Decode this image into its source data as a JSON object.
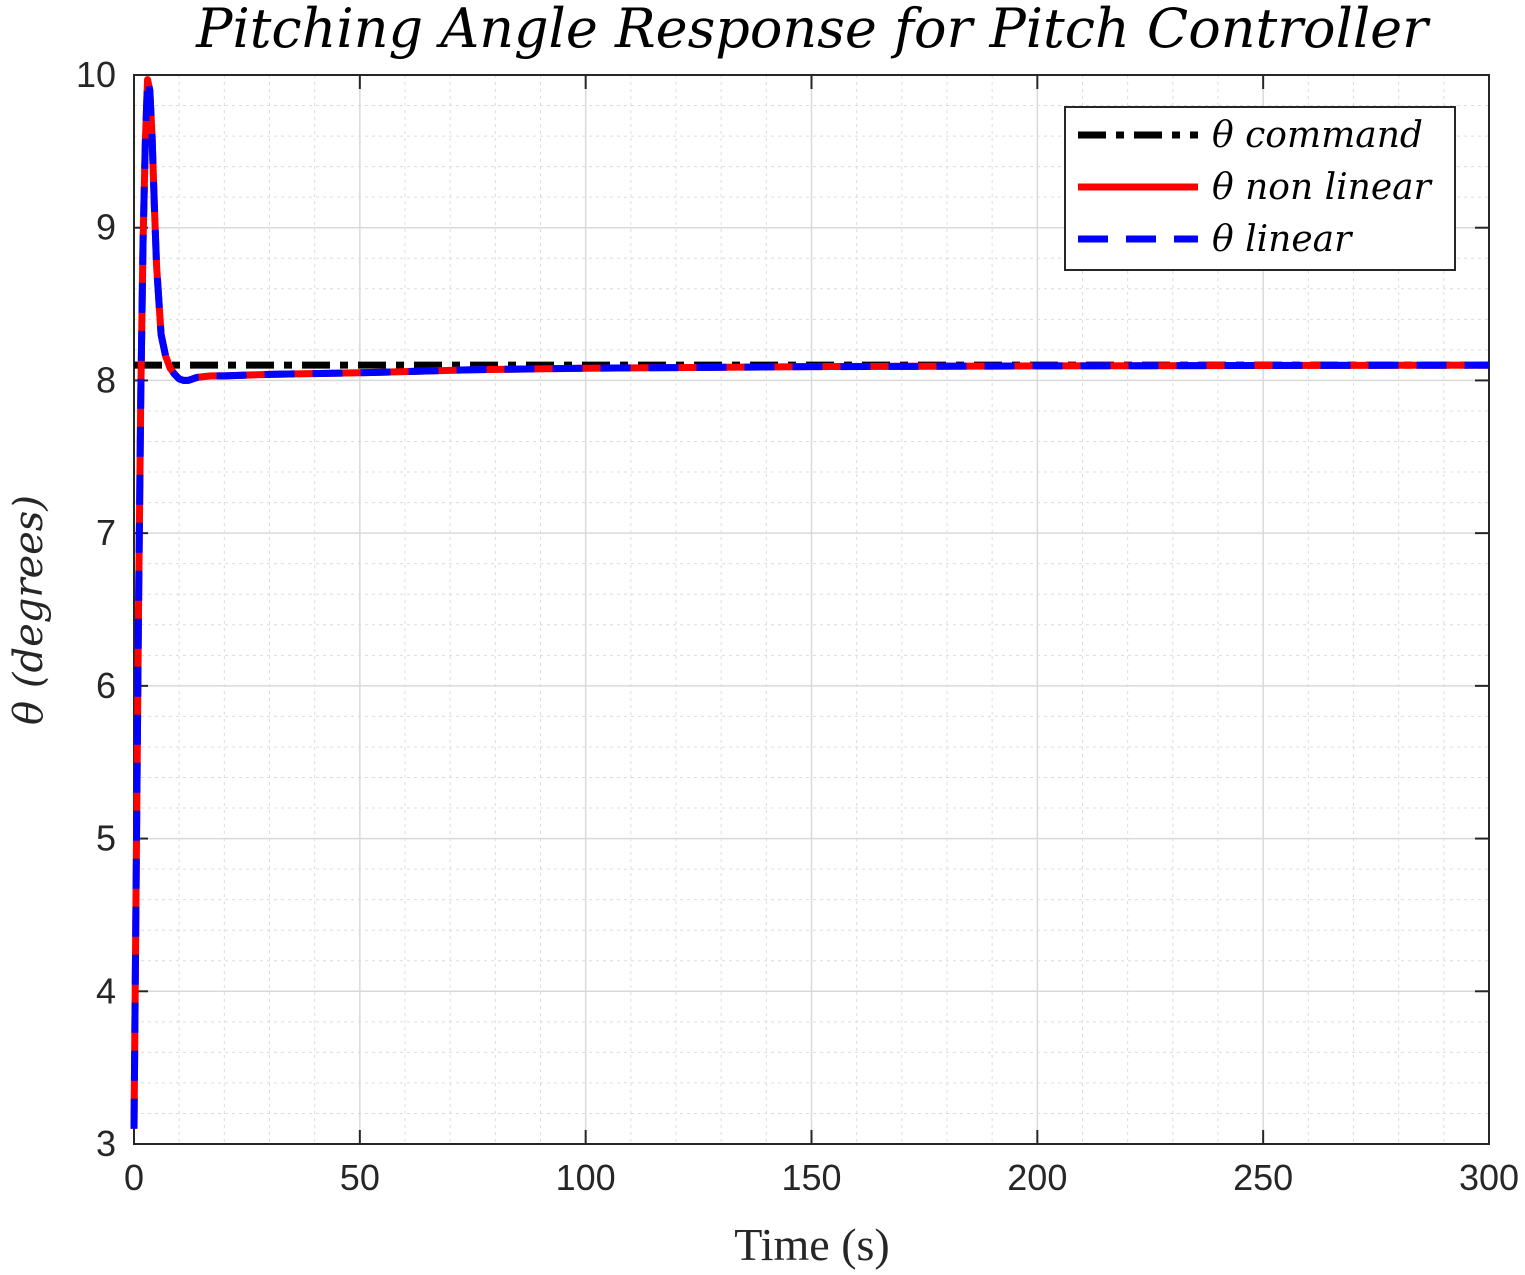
{
  "chart_data": {
    "type": "line",
    "title": "Pitching Angle Response for Pitch Controller",
    "xlabel": "Time (s)",
    "ylabel": "θ (degrees)",
    "xlim": [
      0,
      300
    ],
    "ylim": [
      3,
      10
    ],
    "xticks": [
      "0",
      "50",
      "100",
      "150",
      "200",
      "250",
      "300"
    ],
    "yticks": [
      "3",
      "4",
      "5",
      "6",
      "7",
      "8",
      "9",
      "10"
    ],
    "grid": true,
    "minor_grid": true,
    "legend_position": "top-right",
    "series": [
      {
        "name": "θ command",
        "color": "#000000",
        "style": "dash-dot",
        "x": [
          0,
          300
        ],
        "y": [
          8.1,
          8.1
        ]
      },
      {
        "name": "θ non linear",
        "color": "#ff0000",
        "style": "solid",
        "x": [
          0,
          0.5,
          1,
          1.5,
          2,
          2.5,
          3,
          3.5,
          4,
          4.5,
          5,
          6,
          7,
          8,
          9,
          10,
          11,
          12,
          14,
          17,
          20,
          30,
          50,
          75,
          100,
          150,
          200,
          250,
          300
        ],
        "y": [
          3.1,
          4.8,
          6.5,
          7.9,
          8.9,
          9.55,
          9.97,
          9.9,
          9.6,
          9.15,
          8.75,
          8.3,
          8.16,
          8.08,
          8.04,
          8.01,
          8.0,
          8.0,
          8.02,
          8.03,
          8.03,
          8.04,
          8.05,
          8.07,
          8.08,
          8.09,
          8.095,
          8.098,
          8.1
        ]
      },
      {
        "name": "θ linear",
        "color": "#0000ff",
        "style": "dashed",
        "x": [
          0,
          0.5,
          1,
          1.5,
          2,
          2.5,
          3,
          3.5,
          4,
          4.5,
          5,
          6,
          7,
          8,
          9,
          10,
          11,
          12,
          14,
          17,
          20,
          30,
          50,
          75,
          100,
          150,
          200,
          250,
          300
        ],
        "y": [
          3.1,
          4.8,
          6.5,
          7.9,
          8.9,
          9.55,
          9.97,
          9.9,
          9.6,
          9.15,
          8.75,
          8.3,
          8.16,
          8.08,
          8.04,
          8.01,
          8.0,
          8.0,
          8.02,
          8.03,
          8.03,
          8.04,
          8.05,
          8.07,
          8.08,
          8.09,
          8.095,
          8.098,
          8.1
        ]
      }
    ]
  }
}
